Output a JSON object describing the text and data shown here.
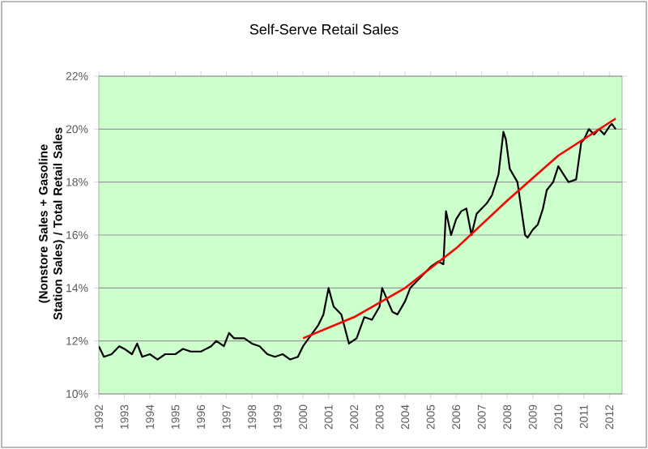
{
  "chart_data": {
    "type": "line",
    "title": "Self-Serve Retail Sales",
    "ylabel": "(Nonstore Sales + Gasoline Station Sales) / Total Retail Sales",
    "xlim": [
      1992,
      2012.5
    ],
    "ylim": [
      10,
      22
    ],
    "xticks": [
      1992,
      1993,
      1994,
      1995,
      1996,
      1997,
      1998,
      1999,
      2000,
      2001,
      2002,
      2003,
      2004,
      2005,
      2006,
      2007,
      2008,
      2009,
      2010,
      2011,
      2012
    ],
    "yticks": [
      {
        "value": 10,
        "label": "10%"
      },
      {
        "value": 12,
        "label": "12%"
      },
      {
        "value": 14,
        "label": "14%"
      },
      {
        "value": 16,
        "label": "16%"
      },
      {
        "value": 18,
        "label": "18%"
      },
      {
        "value": 20,
        "label": "20%"
      },
      {
        "value": 22,
        "label": "22%"
      }
    ],
    "grid": "y",
    "marker": "none",
    "line_style": "solid",
    "series": [
      {
        "color": "#000000",
        "x": [
          1992.0,
          1992.2,
          1992.5,
          1992.8,
          1993.0,
          1993.3,
          1993.5,
          1993.7,
          1994.0,
          1994.3,
          1994.6,
          1995.0,
          1995.3,
          1995.6,
          1996.0,
          1996.4,
          1996.6,
          1996.9,
          1997.1,
          1997.3,
          1997.7,
          1998.0,
          1998.3,
          1998.6,
          1998.9,
          1999.2,
          1999.5,
          1999.8,
          2000.0,
          2000.3,
          2000.6,
          2000.8,
          2001.0,
          2001.2,
          2001.5,
          2001.8,
          2002.1,
          2002.4,
          2002.7,
          2003.0,
          2003.1,
          2003.5,
          2003.7,
          2004.0,
          2004.2,
          2004.5,
          2004.8,
          2005.0,
          2005.3,
          2005.5,
          2005.6,
          2005.8,
          2006.0,
          2006.2,
          2006.4,
          2006.6,
          2006.8,
          2007.0,
          2007.2,
          2007.4,
          2007.66,
          2007.85,
          2007.95,
          2008.1,
          2008.4,
          2008.7,
          2008.8,
          2009.0,
          2009.2,
          2009.4,
          2009.55,
          2009.8,
          2010.0,
          2010.2,
          2010.4,
          2010.7,
          2010.9,
          2011.0,
          2011.2,
          2011.4,
          2011.6,
          2011.8,
          2012.0,
          2012.1,
          2012.25
        ],
        "values": [
          11.8,
          11.4,
          11.5,
          11.8,
          11.7,
          11.5,
          11.9,
          11.4,
          11.5,
          11.3,
          11.5,
          11.5,
          11.7,
          11.6,
          11.6,
          11.8,
          12.0,
          11.8,
          12.3,
          12.1,
          12.1,
          11.9,
          11.8,
          11.5,
          11.4,
          11.5,
          11.3,
          11.4,
          11.8,
          12.2,
          12.6,
          13.0,
          14.0,
          13.3,
          13.0,
          11.9,
          12.1,
          12.9,
          12.8,
          13.3,
          14.0,
          13.1,
          13.0,
          13.5,
          14.0,
          14.3,
          14.6,
          14.8,
          15.0,
          14.9,
          16.9,
          16.0,
          16.6,
          16.9,
          17.0,
          16.0,
          16.8,
          17.0,
          17.2,
          17.5,
          18.3,
          19.9,
          19.6,
          18.5,
          18.0,
          16.0,
          15.9,
          16.2,
          16.4,
          17.0,
          17.7,
          18.0,
          18.6,
          18.3,
          18.0,
          18.1,
          19.5,
          19.6,
          20.0,
          19.8,
          20.0,
          19.8,
          20.1,
          20.2,
          20.0
        ]
      },
      {
        "color": "#ff0000",
        "x": [
          2000.0,
          2002.0,
          2004.0,
          2006.0,
          2008.0,
          2010.0,
          2012.25
        ],
        "values": [
          12.1,
          12.9,
          14.0,
          15.5,
          17.3,
          19.0,
          20.4
        ]
      }
    ]
  }
}
